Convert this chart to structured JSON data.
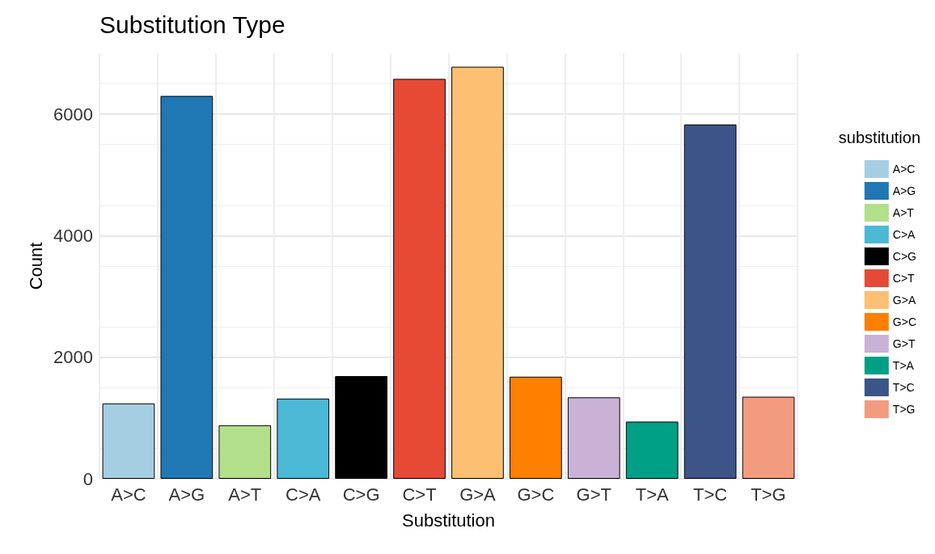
{
  "chart_data": {
    "type": "bar",
    "title": "Substitution Type",
    "xlabel": "Substitution",
    "ylabel": "Count",
    "legend_title": "substitution",
    "categories": [
      "A>C",
      "A>G",
      "A>T",
      "C>A",
      "C>G",
      "C>T",
      "G>A",
      "G>C",
      "G>T",
      "T>A",
      "T>C",
      "T>G"
    ],
    "series": [
      {
        "name": "A>C",
        "color": "#a6cee3",
        "values": [
          1240,
          null,
          null,
          null,
          null,
          null,
          null,
          null,
          null,
          null,
          null,
          null
        ]
      },
      {
        "name": "A>G",
        "color": "#1f78b4",
        "values": [
          null,
          6300,
          null,
          null,
          null,
          null,
          null,
          null,
          null,
          null,
          null,
          null
        ]
      },
      {
        "name": "A>T",
        "color": "#b2df8a",
        "values": [
          null,
          null,
          880,
          null,
          null,
          null,
          null,
          null,
          null,
          null,
          null,
          null
        ]
      },
      {
        "name": "C>A",
        "color": "#4bb8d6",
        "values": [
          null,
          null,
          null,
          1320,
          null,
          null,
          null,
          null,
          null,
          null,
          null,
          null
        ]
      },
      {
        "name": "C>G",
        "color": "#000000",
        "values": [
          null,
          null,
          null,
          null,
          1690,
          null,
          null,
          null,
          null,
          null,
          null,
          null
        ]
      },
      {
        "name": "C>T",
        "color": "#e64a35",
        "values": [
          null,
          null,
          null,
          null,
          null,
          6580,
          null,
          null,
          null,
          null,
          null,
          null
        ]
      },
      {
        "name": "G>A",
        "color": "#fdbf71",
        "values": [
          null,
          null,
          null,
          null,
          null,
          null,
          6780,
          null,
          null,
          null,
          null,
          null
        ]
      },
      {
        "name": "G>C",
        "color": "#ff7f00",
        "values": [
          null,
          null,
          null,
          null,
          null,
          null,
          null,
          1680,
          null,
          null,
          null,
          null
        ]
      },
      {
        "name": "G>T",
        "color": "#cab2d6",
        "values": [
          null,
          null,
          null,
          null,
          null,
          null,
          null,
          null,
          1340,
          null,
          null,
          null
        ]
      },
      {
        "name": "T>A",
        "color": "#00a087",
        "values": [
          null,
          null,
          null,
          null,
          null,
          null,
          null,
          null,
          null,
          940,
          null,
          null
        ]
      },
      {
        "name": "T>C",
        "color": "#3c5488",
        "values": [
          null,
          null,
          null,
          null,
          null,
          null,
          null,
          null,
          null,
          null,
          5830,
          null
        ]
      },
      {
        "name": "T>G",
        "color": "#f39b7f",
        "values": [
          null,
          null,
          null,
          null,
          null,
          null,
          null,
          null,
          null,
          null,
          null,
          1350
        ]
      }
    ],
    "ylim": [
      0,
      7000
    ],
    "yticks": [
      0,
      2000,
      4000,
      6000
    ],
    "grid": true,
    "legend": "right"
  }
}
